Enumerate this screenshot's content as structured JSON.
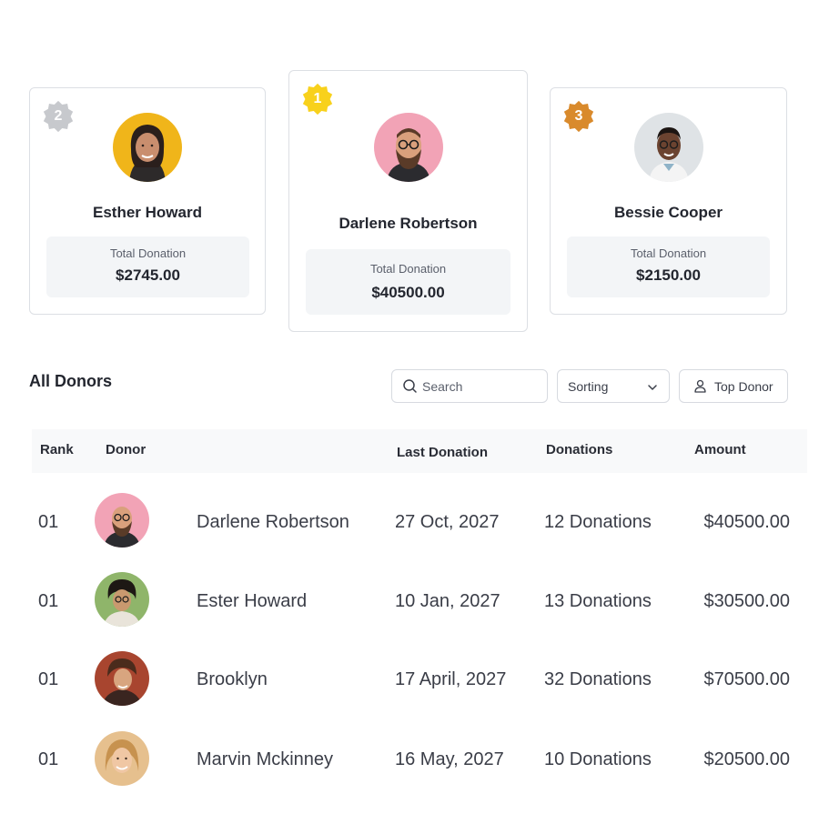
{
  "podium": [
    {
      "rank": "2",
      "name": "Esther Howard",
      "total_label": "Total Donation",
      "total": "$2745.00",
      "badge_color": "#c7c9cd",
      "avatar_bg": "#f0b51a"
    },
    {
      "rank": "1",
      "name": "Darlene Robertson",
      "total_label": "Total Donation",
      "total": "$40500.00",
      "badge_color": "#f8d11c",
      "avatar_bg": "#f2a3b6"
    },
    {
      "rank": "3",
      "name": "Bessie Cooper",
      "total_label": "Total Donation",
      "total": "$2150.00",
      "badge_color": "#d98a2c",
      "avatar_bg": "#dfe3e6"
    }
  ],
  "donors_section": {
    "title": "All Donors",
    "search_placeholder": "Search",
    "sorting_label": "Sorting",
    "top_donor_label": "Top Donor"
  },
  "table": {
    "headers": {
      "rank": "Rank",
      "donor": "Donor",
      "last_donation": "Last Donation",
      "donations": "Donations",
      "amount": "Amount"
    },
    "rows": [
      {
        "rank": "01",
        "name": "Darlene Robertson",
        "last_donation": "27 Oct, 2027",
        "donations": "12 Donations",
        "amount": "$40500.00",
        "avatar_bg": "#f2a3b6"
      },
      {
        "rank": "01",
        "name": "Ester Howard",
        "last_donation": "10 Jan, 2027",
        "donations": "13 Donations",
        "amount": "$30500.00",
        "avatar_bg": "#8fb56a"
      },
      {
        "rank": "01",
        "name": "Brooklyn",
        "last_donation": "17 April, 2027",
        "donations": "32 Donations",
        "amount": "$70500.00",
        "avatar_bg": "#a8452f"
      },
      {
        "rank": "01",
        "name": "Marvin Mckinney",
        "last_donation": "16 May, 2027",
        "donations": "10 Donations",
        "amount": "$20500.00",
        "avatar_bg": "#e6c08e"
      }
    ]
  }
}
